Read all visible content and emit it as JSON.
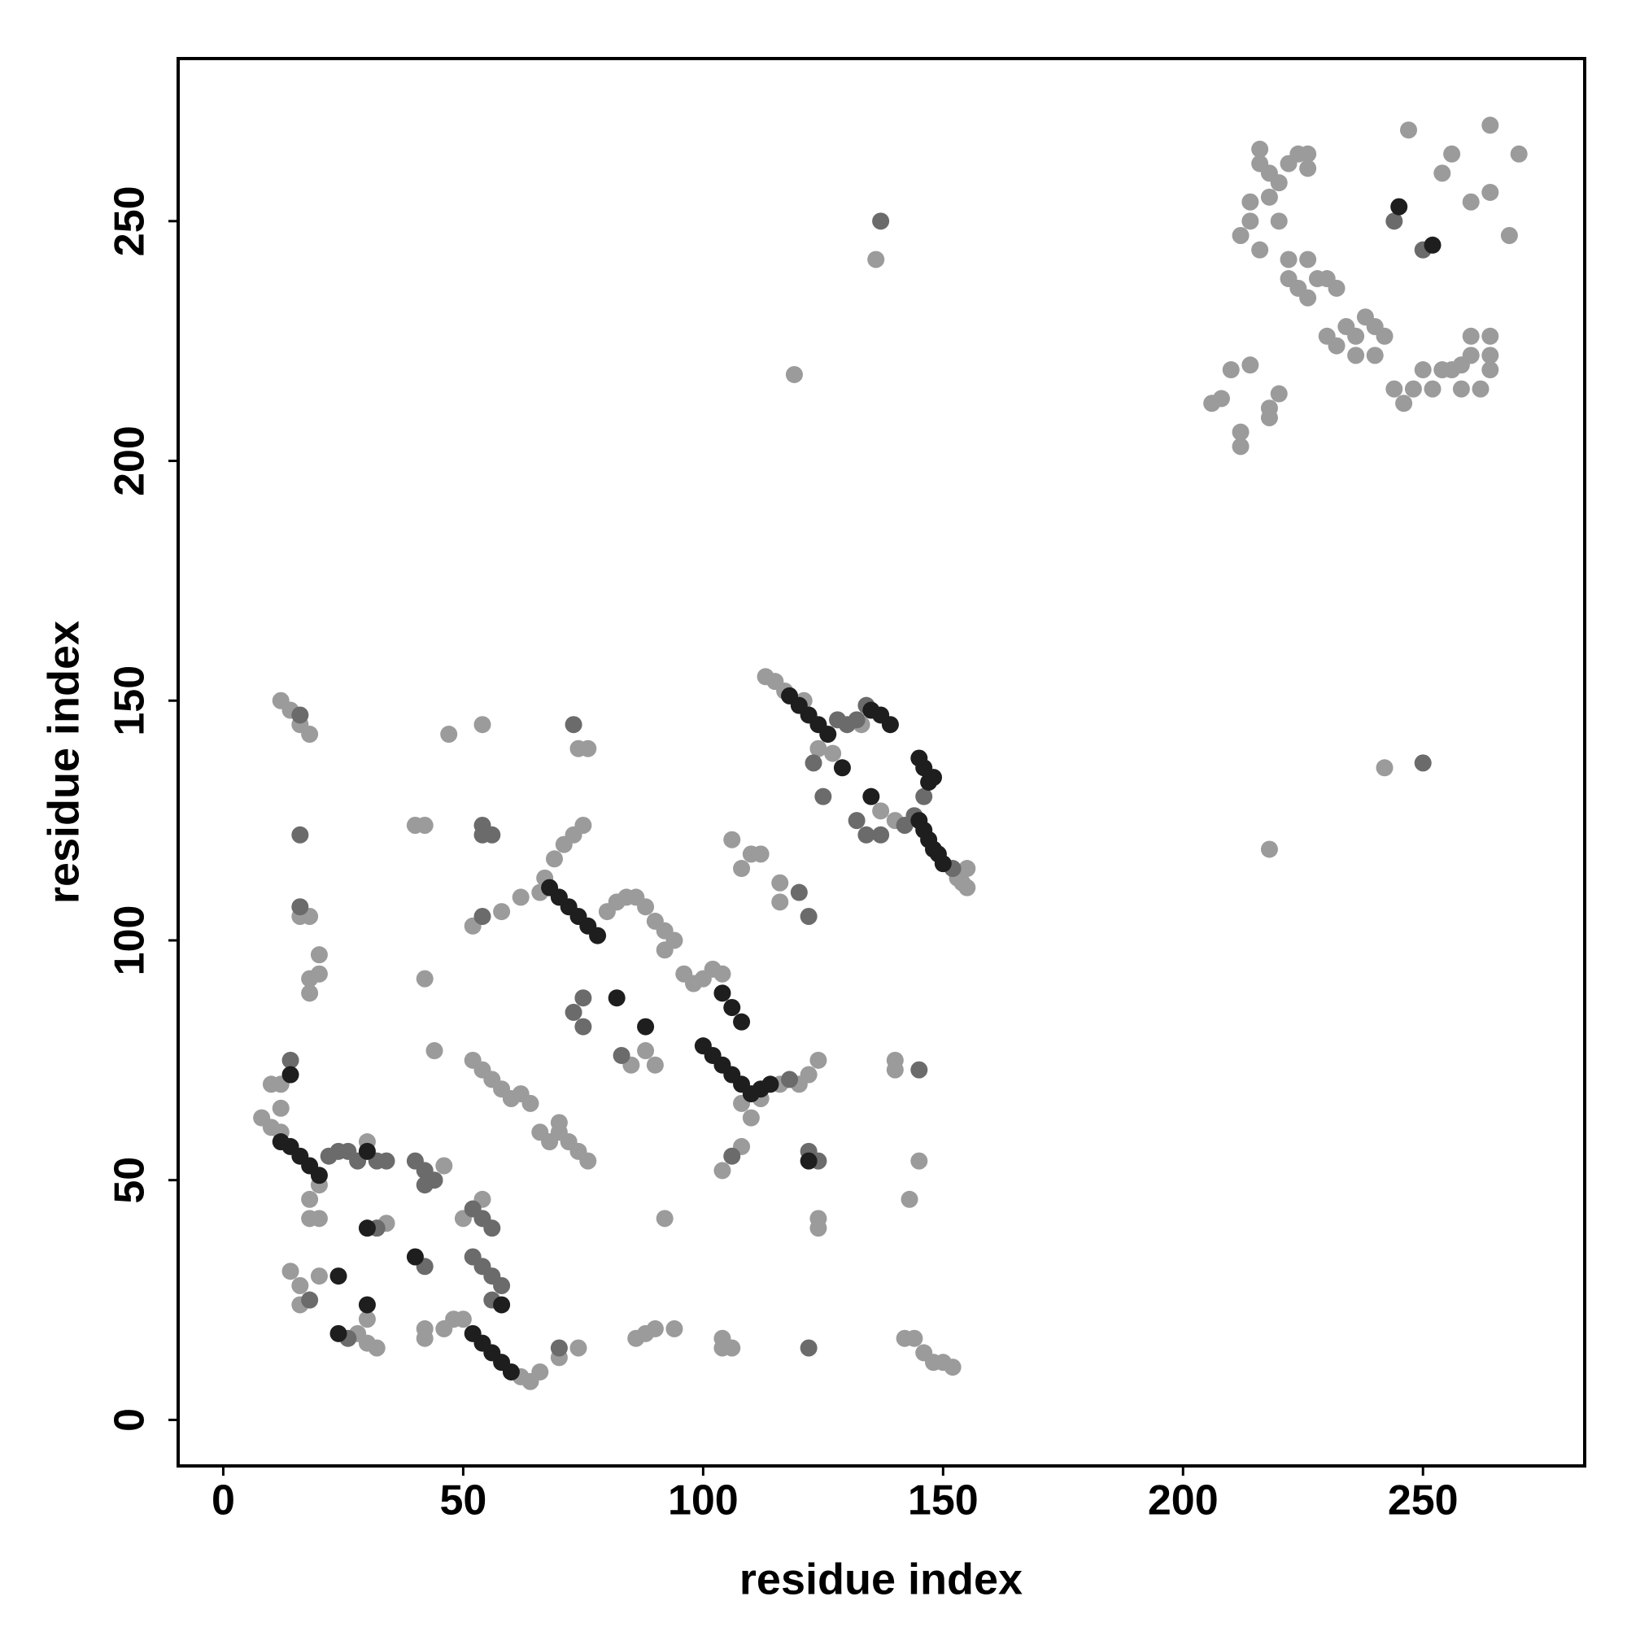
{
  "chart_data": {
    "type": "scatter",
    "x_label": "residue index",
    "y_label": "residue index",
    "xlim": [
      -9.4,
      283.7
    ],
    "ylim": [
      -9.6,
      283.9
    ],
    "xticks": [
      0,
      50,
      100,
      150,
      200,
      250
    ],
    "yticks": [
      0,
      50,
      100,
      150,
      200,
      250
    ],
    "series": [
      {
        "color": "#9b9b9b",
        "x": [
          216,
          216,
          218,
          220,
          222,
          224,
          226,
          226,
          218,
          214,
          214,
          220,
          212,
          216,
          222,
          226,
          222,
          224,
          228,
          230,
          226,
          232,
          234,
          236,
          238,
          240,
          236,
          242,
          240,
          244,
          246,
          248,
          250,
          252,
          254,
          256,
          258,
          260,
          262,
          264,
          264,
          264,
          260,
          258,
          254,
          256,
          260,
          264,
          268,
          270,
          247,
          264,
          206,
          208,
          210,
          214,
          212,
          212,
          218,
          220,
          218,
          230,
          232,
          136,
          119,
          242,
          218,
          113,
          115,
          117,
          121,
          127,
          133,
          153,
          155,
          155,
          154,
          137,
          140,
          124,
          66,
          67,
          69,
          71,
          73,
          75,
          74,
          76,
          80,
          82,
          84,
          86,
          88,
          90,
          92,
          94,
          92,
          96,
          98,
          100,
          102,
          104,
          108,
          110,
          112,
          116,
          120,
          122,
          124,
          85,
          88,
          90,
          52,
          54,
          56,
          58,
          60,
          62,
          64,
          66,
          68,
          70,
          72,
          74,
          76,
          70,
          44,
          47,
          54,
          16,
          18,
          12,
          14,
          40,
          42,
          18,
          16,
          20,
          18,
          20,
          18,
          42,
          52,
          58,
          62,
          106,
          110,
          112,
          108,
          116,
          116,
          140,
          140,
          143,
          145,
          124,
          124,
          92,
          104,
          108,
          8,
          10,
          12,
          12,
          10,
          12,
          30,
          18,
          20,
          18,
          20,
          34,
          46,
          14,
          16,
          16,
          20,
          30,
          28,
          30,
          32,
          42,
          42,
          46,
          48,
          50,
          62,
          64,
          66,
          70,
          74,
          50,
          54,
          86,
          88,
          90,
          94,
          104,
          106,
          104,
          142,
          144,
          146,
          148,
          150,
          152
        ],
        "y": [
          265,
          262,
          260,
          258,
          262,
          264,
          264,
          261,
          255,
          254,
          250,
          250,
          247,
          244,
          242,
          242,
          238,
          236,
          238,
          238,
          234,
          236,
          228,
          226,
          230,
          228,
          222,
          226,
          222,
          215,
          212,
          215,
          219,
          215,
          219,
          219,
          220,
          222,
          215,
          219,
          222,
          226,
          226,
          215,
          260,
          264,
          254,
          256,
          247,
          264,
          269,
          270,
          212,
          213,
          219,
          220,
          206,
          203,
          211,
          214,
          209,
          226,
          224,
          242,
          218,
          136,
          119,
          155,
          154,
          152,
          150,
          139,
          145,
          113,
          111,
          115,
          112,
          127,
          125,
          140,
          110,
          113,
          117,
          120,
          122,
          124,
          140,
          140,
          106,
          108,
          109,
          109,
          107,
          104,
          102,
          100,
          98,
          93,
          91,
          92,
          94,
          93,
          66,
          63,
          67,
          70,
          70,
          72,
          75,
          74,
          77,
          74,
          75,
          73,
          71,
          69,
          67,
          68,
          66,
          60,
          58,
          60,
          58,
          56,
          54,
          62,
          77,
          143,
          145,
          145,
          143,
          150,
          148,
          124,
          124,
          105,
          105,
          97,
          92,
          93,
          89,
          92,
          103,
          106,
          109,
          121,
          118,
          118,
          115,
          112,
          108,
          75,
          73,
          46,
          54,
          42,
          40,
          42,
          52,
          57,
          63,
          61,
          65,
          60,
          70,
          70,
          58,
          46,
          49,
          42,
          42,
          41,
          53,
          31,
          28,
          24,
          30,
          21,
          18,
          16,
          15,
          19,
          17,
          19,
          21,
          21,
          9,
          8,
          10,
          13,
          15,
          42,
          46,
          17,
          18,
          19,
          19,
          15,
          15,
          17,
          17,
          17,
          14,
          12,
          12,
          11
        ]
      },
      {
        "color": "#6b6b6b",
        "x": [
          137,
          250,
          250,
          244,
          128,
          130,
          132,
          134,
          123,
          125,
          132,
          134,
          137,
          142,
          144,
          146,
          152,
          73,
          118,
          75,
          73,
          75,
          83,
          16,
          16,
          54,
          56,
          54,
          16,
          54,
          120,
          122,
          145,
          122,
          124,
          106,
          14,
          22,
          24,
          26,
          28,
          32,
          34,
          40,
          42,
          44,
          42,
          18,
          26,
          70,
          122,
          52,
          54,
          56,
          52,
          54,
          56,
          58,
          56,
          32,
          42
        ],
        "y": [
          250,
          137,
          244,
          250,
          146,
          145,
          146,
          149,
          137,
          130,
          125,
          122,
          122,
          124,
          126,
          130,
          115,
          145,
          71,
          88,
          85,
          82,
          76,
          147,
          122,
          124,
          122,
          122,
          107,
          105,
          110,
          105,
          73,
          56,
          54,
          55,
          75,
          55,
          56,
          56,
          54,
          54,
          54,
          54,
          52,
          50,
          49,
          25,
          17,
          15,
          15,
          44,
          42,
          40,
          34,
          32,
          30,
          28,
          25,
          40,
          32
        ]
      },
      {
        "color": "#1e1e1e",
        "x": [
          245,
          252,
          118,
          120,
          122,
          124,
          126,
          135,
          137,
          139,
          129,
          135,
          145,
          146,
          147,
          148,
          145,
          146,
          147,
          148,
          149,
          150,
          68,
          70,
          72,
          74,
          76,
          78,
          104,
          106,
          108,
          100,
          102,
          104,
          106,
          108,
          110,
          112,
          114,
          82,
          88,
          14,
          12,
          14,
          16,
          18,
          20,
          30,
          30,
          40,
          24,
          30,
          24,
          52,
          54,
          56,
          58,
          60,
          122,
          58
        ],
        "y": [
          253,
          245,
          151,
          149,
          147,
          145,
          143,
          148,
          147,
          145,
          136,
          130,
          138,
          136,
          133,
          134,
          125,
          123,
          121,
          119,
          118,
          116,
          111,
          109,
          107,
          105,
          103,
          101,
          89,
          86,
          83,
          78,
          76,
          74,
          72,
          70,
          68,
          69,
          70,
          88,
          82,
          72,
          58,
          57,
          55,
          53,
          51,
          56,
          40,
          34,
          30,
          24,
          18,
          18,
          16,
          14,
          12,
          10,
          54,
          24
        ]
      }
    ]
  }
}
